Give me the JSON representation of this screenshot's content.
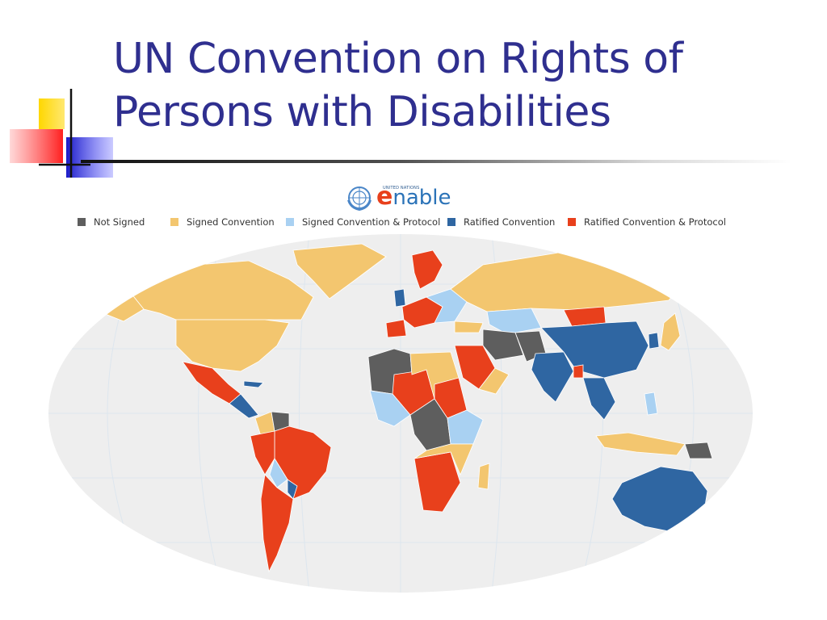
{
  "slide": {
    "title_line1": "UN Convention on Rights of",
    "title_line2": "Persons with Disabilities"
  },
  "logo": {
    "org_small": "UNITED NATIONS",
    "word_e": "e",
    "word_rest": "nable"
  },
  "legend": [
    {
      "label": "Not Signed",
      "color": "#5e5e5e"
    },
    {
      "label": "Signed Convention",
      "color": "#f3c66f"
    },
    {
      "label": "Signed Convention & Protocol",
      "color": "#a9d1f2"
    },
    {
      "label": "Ratified Convention",
      "color": "#2f66a2"
    },
    {
      "label": "Ratified Convention & Protocol",
      "color": "#e8401c"
    }
  ],
  "colors": {
    "title": "#2f2f8f",
    "ocean": "#eeeeee",
    "graticule": "#dde6ee",
    "deco_yellow": "#ffd700",
    "deco_red": "#ff3030",
    "deco_blue": "#2a2ad0"
  }
}
